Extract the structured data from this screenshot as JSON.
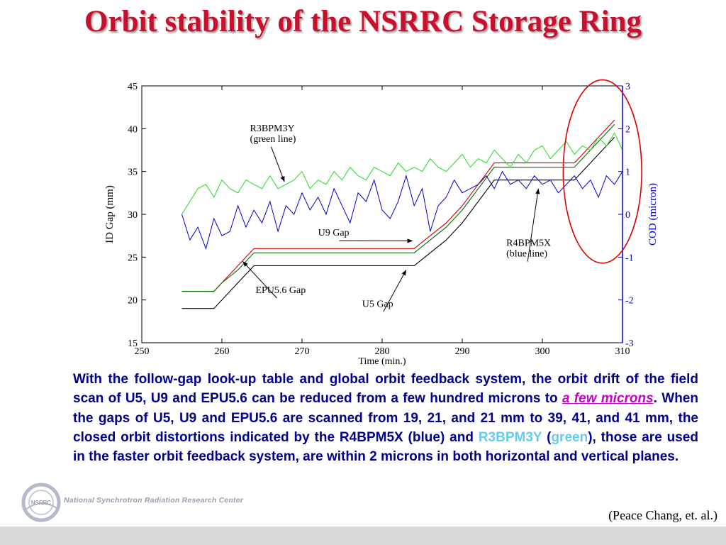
{
  "slide": {
    "title": "Orbit stability of the NSRRC Storage Ring",
    "paragraph": {
      "part1": "With the follow-gap look-up table and global orbit feedback system, the orbit drift of the field scan of U5, U9 and EPU5.6 can be reduced from a few hundred microns to ",
      "highlight": "a few microns",
      "part2": ". When the gaps of U5, U9 and EPU5.6 are scanned from 19, 21, and 21 mm to 39, 41, and 41 mm, the closed orbit distortions indicated by the R4BPM5X (blue) and ",
      "bpm_name": "R3BPM3Y",
      "part3": " (",
      "green_word": "green",
      "part4": "), those are used in the faster orbit feedback system, are within 2 microns in both horizontal and vertical planes."
    },
    "org_name": "National Synchrotron Radiation Research Center",
    "logo_text": "NSRRC",
    "credit": "(Peace Chang, et. al.)"
  },
  "colors": {
    "title": "#c8102e",
    "body_text": "#00008b",
    "u9_gap": "#cc0000",
    "u5_gap": "#000000",
    "epu_gap": "#007000",
    "r3bpm3y": "#22dd22",
    "r4bpm5x": "#0000cc",
    "right_axis": "#0000cc",
    "ellipse": "#dd0000"
  },
  "chart_data": {
    "type": "line",
    "xlabel": "Time (min.)",
    "ylabel": "ID Gap (mm)",
    "ylabel_right": "COD (micron)",
    "xlim": [
      250,
      310
    ],
    "ylim": [
      15,
      45
    ],
    "ylim_right": [
      -3,
      3
    ],
    "xticks": [
      250,
      260,
      270,
      280,
      290,
      300,
      310
    ],
    "yticks": [
      15,
      20,
      25,
      30,
      35,
      40,
      45
    ],
    "yticks_right": [
      -3,
      -2,
      -1,
      0,
      1,
      2,
      3
    ],
    "grid": false,
    "gap_series": [
      {
        "key": "u9",
        "axis": "left",
        "x": [
          255,
          259,
          260,
          262,
          264,
          284,
          288,
          290,
          294,
          304,
          307,
          309
        ],
        "y": [
          21,
          21,
          22,
          24,
          26,
          26,
          29,
          31,
          36,
          36,
          39,
          41
        ]
      },
      {
        "key": "epu",
        "axis": "left",
        "x": [
          255,
          259,
          260,
          262,
          264,
          284,
          288,
          290,
          294,
          304,
          307,
          309
        ],
        "y": [
          21,
          21,
          22,
          23.5,
          25.5,
          25.5,
          28.5,
          30.5,
          35.5,
          35.5,
          38.5,
          40.5
        ]
      },
      {
        "key": "u5",
        "axis": "left",
        "x": [
          255,
          259,
          262,
          264,
          284,
          288,
          290,
          294,
          304,
          307,
          309
        ],
        "y": [
          19,
          19,
          22,
          24,
          24,
          27,
          29,
          34,
          34,
          37,
          39
        ]
      }
    ],
    "cod_series": [
      {
        "name": "R3BPM3Y",
        "axis": "right",
        "x_start": 255,
        "x_end": 310,
        "y": [
          0,
          0.3,
          0.6,
          0.7,
          0.4,
          0.8,
          0.6,
          0.5,
          0.8,
          0.7,
          0.6,
          0.9,
          0.6,
          0.7,
          0.8,
          1.0,
          0.6,
          0.8,
          0.7,
          1.0,
          0.8,
          1.1,
          0.9,
          0.8,
          1.1,
          1.0,
          0.9,
          1.2,
          1.0,
          1.1,
          1.0,
          1.3,
          1.1,
          1.0,
          1.2,
          1.4,
          1.1,
          1.3,
          1.2,
          1.5,
          1.3,
          1.1,
          1.4,
          1.2,
          1.5,
          1.6,
          1.3,
          1.5,
          1.7,
          1.4,
          1.6,
          1.5,
          1.8,
          1.6,
          1.9,
          1.5
        ]
      },
      {
        "name": "R4BPM5X",
        "axis": "right",
        "x_start": 255,
        "x_end": 310,
        "y": [
          0,
          -0.6,
          -0.3,
          -0.8,
          -0.1,
          -0.5,
          -0.4,
          0.2,
          -0.3,
          0.1,
          -0.2,
          0.3,
          -0.4,
          0.2,
          0.0,
          0.5,
          0.1,
          0.4,
          0.0,
          0.6,
          0.2,
          -0.2,
          0.5,
          0.3,
          0.8,
          0.1,
          -0.1,
          0.3,
          0.9,
          0.2,
          0.6,
          -0.4,
          0.2,
          0.4,
          0.8,
          0.5,
          0.6,
          0.7,
          0.9,
          0.6,
          1.0,
          0.7,
          0.8,
          0.6,
          0.9,
          0.7,
          0.8,
          0.5,
          0.7,
          0.9,
          0.6,
          0.8,
          0.4,
          0.9,
          0.7,
          1.0
        ]
      }
    ],
    "annotations": [
      {
        "key": "r3",
        "text_lines": [
          "R3BPM3Y",
          "(green line)"
        ],
        "text_at": [
          263.5,
          39.7
        ],
        "arrow_to": [
          267.8,
          33.8
        ]
      },
      {
        "key": "u9",
        "text_lines": [
          "U9 Gap"
        ],
        "text_at": [
          272,
          27.5
        ],
        "arrow_to": [
          283.8,
          26.9
        ]
      },
      {
        "key": "r4",
        "text_lines": [
          "R4BPM5X",
          "(blue line)"
        ],
        "text_at": [
          295.5,
          26.3
        ],
        "arrow_to": [
          299.5,
          33.0
        ]
      },
      {
        "key": "epu",
        "text_lines": [
          "EPU5.6 Gap"
        ],
        "text_at": [
          264.2,
          20.8
        ],
        "arrow_to": [
          262.6,
          24.5
        ]
      },
      {
        "key": "u5",
        "text_lines": [
          "U5 Gap"
        ],
        "text_at": [
          277.5,
          19.2
        ],
        "arrow_to": [
          283.0,
          23.5
        ]
      }
    ],
    "highlight": {
      "shape": "ellipse",
      "center": [
        307.5,
        35.0
      ],
      "radius": [
        4.9,
        10.7
      ]
    }
  }
}
